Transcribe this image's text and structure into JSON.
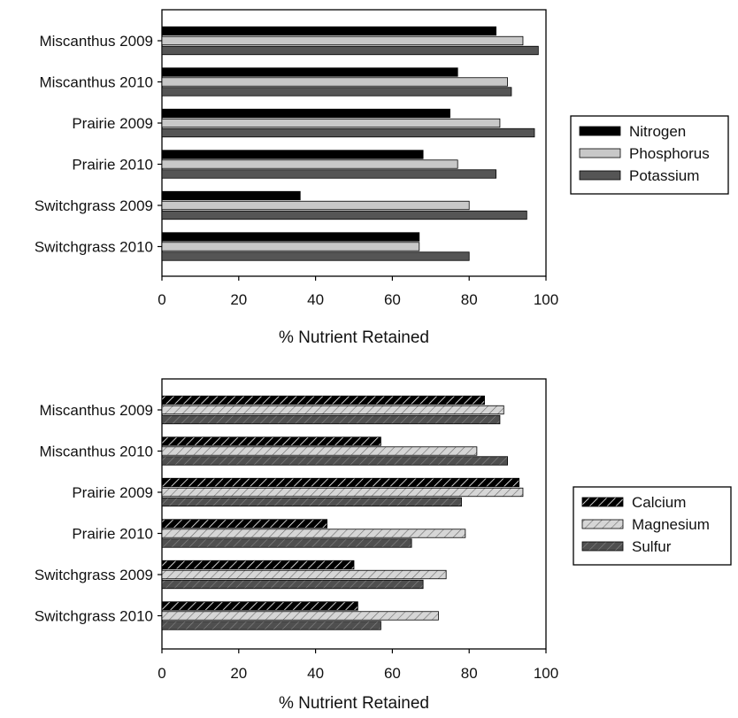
{
  "chart_data": [
    {
      "type": "bar",
      "orientation": "horizontal",
      "title": "",
      "xlabel": "% Nutrient Retained",
      "ylabel": "",
      "xlim": [
        0,
        100
      ],
      "xticks": [
        "0",
        "20",
        "40",
        "60",
        "80",
        "100"
      ],
      "grid": false,
      "legend_position": "right",
      "categories": [
        "Miscanthus 2009",
        "Miscanthus 2010",
        "Prairie 2009",
        "Prairie 2010",
        "Switchgrass 2009",
        "Switchgrass 2010"
      ],
      "series": [
        {
          "name": "Nitrogen",
          "color": "#000000",
          "pattern": "solid",
          "values": [
            87,
            77,
            75,
            68,
            36,
            67
          ]
        },
        {
          "name": "Phosphorus",
          "color": "#c8c8c8",
          "pattern": "solid",
          "values": [
            94,
            90,
            88,
            77,
            80,
            67
          ]
        },
        {
          "name": "Potassium",
          "color": "#555555",
          "pattern": "solid",
          "values": [
            98,
            91,
            97,
            87,
            95,
            80
          ]
        }
      ]
    },
    {
      "type": "bar",
      "orientation": "horizontal",
      "title": "",
      "xlabel": "% Nutrient Retained",
      "ylabel": "",
      "xlim": [
        0,
        100
      ],
      "xticks": [
        "0",
        "20",
        "40",
        "60",
        "80",
        "100"
      ],
      "grid": false,
      "legend_position": "right",
      "categories": [
        "Miscanthus 2009",
        "Miscanthus 2010",
        "Prairie 2009",
        "Prairie 2010",
        "Switchgrass 2009",
        "Switchgrass 2010"
      ],
      "series": [
        {
          "name": "Calcium",
          "color": "#000000",
          "pattern": "hatched",
          "values": [
            84,
            57,
            93,
            43,
            50,
            51
          ]
        },
        {
          "name": "Magnesium",
          "color": "#c8c8c8",
          "pattern": "hatched",
          "values": [
            89,
            82,
            94,
            79,
            74,
            72
          ]
        },
        {
          "name": "Sulfur",
          "color": "#555555",
          "pattern": "hatched",
          "values": [
            88,
            90,
            78,
            65,
            68,
            57
          ]
        }
      ]
    }
  ]
}
